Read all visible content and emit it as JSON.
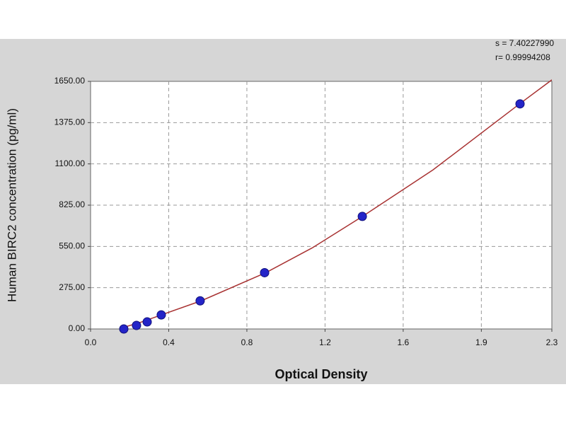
{
  "chart_data": {
    "type": "scatter",
    "x_label": "Optical Density",
    "y_label": "Human BIRC2 concentration (pg/ml)",
    "annotations": [
      "s = 7.40227990",
      "r= 0.99994208"
    ],
    "x": [
      0.165,
      0.228,
      0.281,
      0.351,
      0.544,
      0.864,
      1.349,
      2.132
    ],
    "values": [
      0,
      23.44,
      46.88,
      93.75,
      187.5,
      375,
      750,
      1500
    ],
    "color": "#2424c8",
    "curve": {
      "x": [
        0.15,
        0.25,
        0.35,
        0.55,
        0.87,
        1.1,
        1.35,
        1.7,
        2.13,
        2.29
      ],
      "values": [
        5,
        45,
        93,
        188,
        375,
        540,
        750,
        1060,
        1500,
        1660
      ],
      "color": "#a83232"
    },
    "xlim": [
      0,
      2.29
    ],
    "xticks": [
      {
        "value": 0,
        "label": "0.0"
      },
      {
        "value": 0.388,
        "label": "0.4"
      },
      {
        "value": 0.776,
        "label": "0.8"
      },
      {
        "value": 1.164,
        "label": "1.2"
      },
      {
        "value": 1.552,
        "label": "1.6"
      },
      {
        "value": 1.94,
        "label": "1.9"
      },
      {
        "value": 2.29,
        "label": "2.3"
      }
    ],
    "ylim": [
      0,
      1650
    ],
    "yticks": [
      {
        "value": 0,
        "label": "0.00"
      },
      {
        "value": 275,
        "label": "275.00"
      },
      {
        "value": 550,
        "label": "550.00"
      },
      {
        "value": 825,
        "label": "825.00"
      },
      {
        "value": 1100,
        "label": "1100.00"
      },
      {
        "value": 1375,
        "label": "1375.00"
      },
      {
        "value": 1650,
        "label": "1650.00"
      }
    ],
    "grid": true
  }
}
